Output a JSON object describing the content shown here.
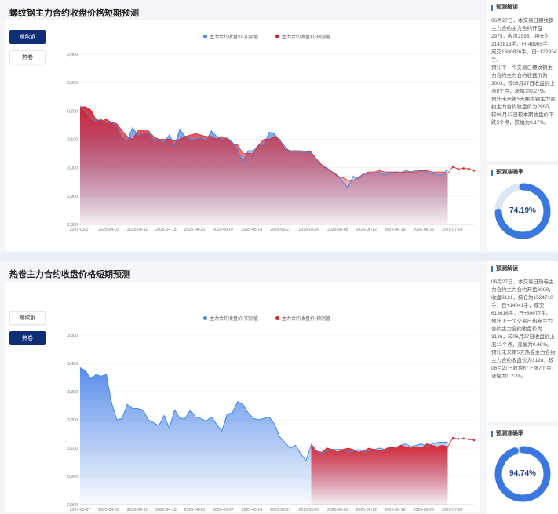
{
  "colors": {
    "actual": "#3d8ae6",
    "forecast": "#e02020",
    "active": "#0e2f78",
    "gauge": "#3a78e0",
    "gauge_track": "#dde6f7"
  },
  "legend": {
    "actual": "主力合约收盘价-实际值",
    "forecast": "主力合约收盘价-预测值"
  },
  "side_heads": {
    "analysis": "预测解读",
    "accuracy": "预测准确率"
  },
  "panels": [
    {
      "title": "螺纹钢主力合约收盘价格短期预测",
      "buttons": [
        {
          "label": "螺纹钢",
          "active": true
        },
        {
          "label": "热卷",
          "active": false
        }
      ],
      "analysis": [
        "06月27日，本交易日螺纹钢主力合约主力合约开盘2975，收盘2995，持仓为2142813手，日-48965手，成交1500826手，日+122934手。",
        "预计下一个交易日螺纹钢主力合约主力合约收盘价为3003，较06月27日收盘价上涨8个点，涨幅为0.27%。",
        "预计未来第5天螺纹钢主力合约主力合约收盘价为2990，较06月27日较本期收盘价下跌5个点，跌幅为0.17%。"
      ],
      "accuracy": "74.19%",
      "accuracy_value": 0.7419
    },
    {
      "title": "热卷主力合约收盘价格短期预测",
      "buttons": [
        {
          "label": "螺纹钢",
          "active": false
        },
        {
          "label": "热卷",
          "active": true
        }
      ],
      "analysis": [
        "06月27日，本交易日热卷主力合约主力合约开盘3099，收盘3121，持仓为1524710手，日+14041手，成交613616手，日+60677手。",
        "预计下一个交易日热卷主力合约主力合约收盘价为3136，较06月27日收盘价上涨15个点，涨幅为0.48%。",
        "预计未来第5天热卷主力合约主力合约收盘价为3128，较06月27日收盘价上涨7个点，涨幅为0.22%。"
      ],
      "accuracy": "94.74%",
      "accuracy_value": 0.9474
    }
  ],
  "chart_data": [
    {
      "type": "area",
      "x_ticks": [
        "2025-03-27",
        "2025-04-03",
        "2025-04-11",
        "2025-04-18",
        "2025-04-25",
        "2025-05-07",
        "2025-05-14",
        "2025-05-21",
        "2025-05-28",
        "2025-06-05",
        "2025-06-12",
        "2025-06-19",
        "2025-06-26",
        "2025-07-03"
      ],
      "y_ticks": [
        "2,800",
        "2,900",
        "3,000",
        "3,100",
        "3,200",
        "3,300",
        "3,400"
      ],
      "ylim": [
        2800,
        3400
      ],
      "n_points": 71,
      "series": [
        {
          "values": [
            3215,
            3200,
            3175,
            3165,
            3170,
            3158,
            3160,
            3145,
            3110,
            3095,
            3140,
            3115,
            3120,
            3125,
            3100,
            3100,
            3090,
            3115,
            3080,
            3135,
            3110,
            3100,
            3100,
            3105,
            3095,
            3130,
            3110,
            3100,
            3105,
            3090,
            3065,
            3020,
            3060,
            3060,
            3080,
            3080,
            3125,
            3120,
            3095,
            3075,
            3055,
            3060,
            3055,
            3055,
            3052,
            3030,
            3010,
            3000,
            2985,
            2975,
            2950,
            2930,
            2970,
            2960,
            2975,
            2980,
            2980,
            2985,
            2975,
            2980,
            2985,
            2980,
            2990,
            2985,
            2990,
            2990,
            2985,
            2980,
            2975,
            2975,
            2995
          ]
        },
        {
          "values": [
            3215,
            3215,
            3205,
            3170,
            3165,
            3170,
            3160,
            3155,
            3130,
            3110,
            3100,
            3130,
            3130,
            3130,
            3110,
            3100,
            3100,
            3100,
            3095,
            3100,
            3110,
            3115,
            3120,
            3115,
            3110,
            3110,
            3100,
            3110,
            3100,
            3085,
            3080,
            3050,
            3050,
            3050,
            3080,
            3100,
            3100,
            3110,
            3100,
            3065,
            3060,
            3060,
            3060,
            3058,
            3055,
            3030,
            3010,
            2995,
            2985,
            2970,
            2965,
            2955,
            2955,
            2965,
            2980,
            2985,
            2985,
            2990,
            2985,
            2985,
            2985,
            2985,
            2985,
            2985,
            2985,
            2990,
            2990,
            2985,
            2985,
            2985,
            2980,
            3003,
            2995,
            2998,
            2996,
            2990
          ]
        }
      ]
    },
    {
      "type": "area",
      "x_ticks": [
        "2025-03-27",
        "2025-04-03",
        "2025-04-11",
        "2025-04-18",
        "2025-04-25",
        "2025-05-07",
        "2025-05-14",
        "2025-05-21",
        "2025-05-28",
        "2025-06-05",
        "2025-06-12",
        "2025-06-19",
        "2025-06-26",
        "2025-07-03"
      ],
      "y_ticks": [
        "2,900",
        "3,000",
        "3,100",
        "3,200",
        "3,300",
        "3,400",
        "3,500"
      ],
      "ylim": [
        2900,
        3500
      ],
      "n_points": 71,
      "series": [
        {
          "values": [
            3385,
            3375,
            3345,
            3360,
            3355,
            3360,
            3260,
            3200,
            3205,
            3255,
            3240,
            3240,
            3235,
            3200,
            3190,
            3180,
            3215,
            3170,
            3235,
            3205,
            3205,
            3235,
            3210,
            3205,
            3195,
            3210,
            3185,
            3160,
            3220,
            3225,
            3265,
            3255,
            3225,
            3205,
            3200,
            3205,
            3210,
            3185,
            3140,
            3120,
            3100,
            3110,
            3080,
            3055,
            3110,
            3090,
            3080,
            3090,
            3095,
            3095,
            3095,
            3085,
            3090,
            3095,
            3085,
            3090,
            3095,
            3100,
            3095,
            3105,
            3100,
            3110,
            3115,
            3105,
            3110,
            3115,
            3105,
            3115,
            3120,
            3121,
            3121
          ]
        },
        {
          "values": [
            null,
            null,
            null,
            null,
            null,
            null,
            null,
            null,
            null,
            null,
            null,
            null,
            null,
            null,
            null,
            null,
            null,
            null,
            null,
            null,
            null,
            null,
            null,
            null,
            null,
            null,
            null,
            null,
            null,
            null,
            null,
            null,
            null,
            null,
            null,
            null,
            null,
            null,
            null,
            null,
            null,
            null,
            null,
            null,
            3115,
            3090,
            3085,
            3100,
            3095,
            3085,
            3095,
            3100,
            3095,
            3085,
            3090,
            3100,
            3095,
            3090,
            3095,
            3105,
            3100,
            3110,
            3105,
            3100,
            3105,
            3100,
            3115,
            3110,
            3105,
            3110,
            3105,
            3136,
            3132,
            3134,
            3131,
            3128
          ]
        }
      ]
    }
  ]
}
